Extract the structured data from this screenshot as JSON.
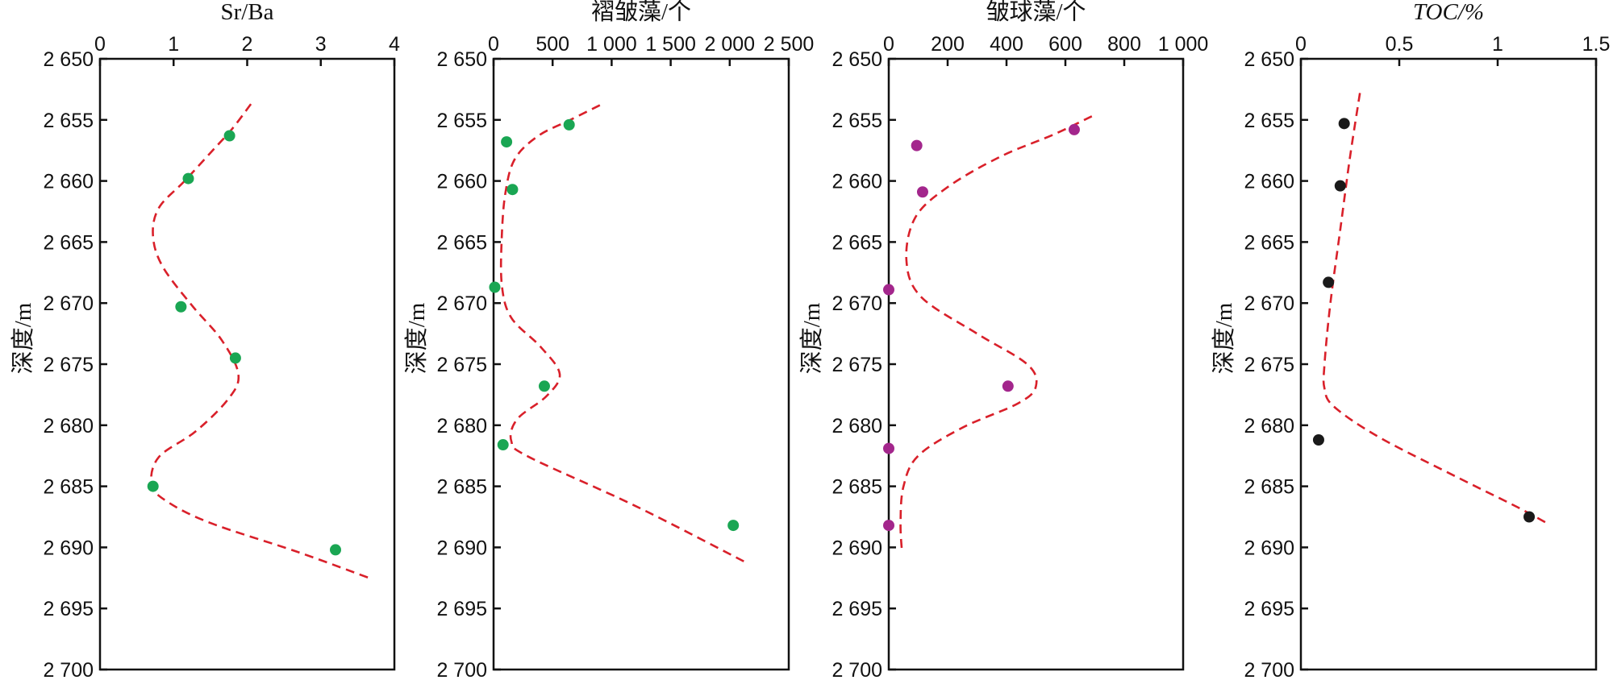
{
  "chart_data": [
    {
      "type": "scatter",
      "title": "Sr/Ba",
      "title_italic": false,
      "ylabel": "深度/m",
      "xlim": [
        0,
        4
      ],
      "xticks": [
        0,
        1,
        2,
        3,
        4
      ],
      "xtick_labels": [
        "0",
        "1",
        "2",
        "3",
        "4"
      ],
      "ylim": [
        2650,
        2700
      ],
      "yticks": [
        2650,
        2655,
        2660,
        2665,
        2670,
        2675,
        2680,
        2685,
        2690,
        2695,
        2700
      ],
      "ytick_labels": [
        "2 650",
        "2 655",
        "2 660",
        "2 665",
        "2 670",
        "2 675",
        "2 680",
        "2 685",
        "2 690",
        "2 695",
        "2 700"
      ],
      "marker_color": "#1aa653",
      "points": [
        {
          "x": 1.76,
          "y": 2656.3
        },
        {
          "x": 1.2,
          "y": 2659.8
        },
        {
          "x": 1.1,
          "y": 2670.3
        },
        {
          "x": 1.84,
          "y": 2674.5
        },
        {
          "x": 0.72,
          "y": 2685.0
        },
        {
          "x": 3.2,
          "y": 2690.2
        }
      ],
      "trend_color": "#d9202a",
      "trend_style": "dashed",
      "trend": [
        [
          2.05,
          2653.7
        ],
        [
          1.8,
          2655.7
        ],
        [
          1.5,
          2657.7
        ],
        [
          1.15,
          2660.0
        ],
        [
          0.8,
          2662.2
        ],
        [
          0.72,
          2664.5
        ],
        [
          0.85,
          2667.0
        ],
        [
          1.25,
          2670.2
        ],
        [
          1.65,
          2673.0
        ],
        [
          1.88,
          2675.8
        ],
        [
          1.75,
          2677.8
        ],
        [
          1.3,
          2680.5
        ],
        [
          0.8,
          2682.6
        ],
        [
          0.7,
          2684.8
        ],
        [
          0.9,
          2686.2
        ],
        [
          1.5,
          2688.0
        ],
        [
          2.7,
          2690.4
        ],
        [
          3.7,
          2692.6
        ]
      ]
    },
    {
      "type": "scatter",
      "title": "褶皱藻/个",
      "title_italic": false,
      "ylabel": "深度/m",
      "xlim": [
        0,
        2500
      ],
      "xticks": [
        0,
        500,
        1000,
        1500,
        2000,
        2500
      ],
      "xtick_labels": [
        "0",
        "500",
        "1 000",
        "1 500",
        "2 000",
        "2 500"
      ],
      "ylim": [
        2650,
        2700
      ],
      "yticks": [
        2650,
        2655,
        2660,
        2665,
        2670,
        2675,
        2680,
        2685,
        2690,
        2695,
        2700
      ],
      "ytick_labels": [
        "2 650",
        "2 655",
        "2 660",
        "2 665",
        "2 670",
        "2 675",
        "2 680",
        "2 685",
        "2 690",
        "2 695",
        "2 700"
      ],
      "marker_color": "#1aa653",
      "points": [
        {
          "x": 640,
          "y": 2655.4
        },
        {
          "x": 110,
          "y": 2656.8
        },
        {
          "x": 160,
          "y": 2660.7
        },
        {
          "x": 10,
          "y": 2668.7
        },
        {
          "x": 430,
          "y": 2676.8
        },
        {
          "x": 80,
          "y": 2681.6
        },
        {
          "x": 2030,
          "y": 2688.2
        }
      ],
      "trend_color": "#d9202a",
      "trend_style": "dashed",
      "trend": [
        [
          900,
          2653.8
        ],
        [
          650,
          2655.0
        ],
        [
          380,
          2656.3
        ],
        [
          180,
          2658.2
        ],
        [
          100,
          2661.0
        ],
        [
          70,
          2664.5
        ],
        [
          70,
          2668.5
        ],
        [
          150,
          2671.2
        ],
        [
          400,
          2673.6
        ],
        [
          560,
          2675.8
        ],
        [
          450,
          2677.6
        ],
        [
          200,
          2679.5
        ],
        [
          150,
          2681.3
        ],
        [
          300,
          2682.6
        ],
        [
          1200,
          2686.6
        ],
        [
          2150,
          2691.3
        ]
      ]
    },
    {
      "type": "scatter",
      "title": "皱球藻/个",
      "title_italic": false,
      "ylabel": "深度/m",
      "xlim": [
        0,
        1000
      ],
      "xticks": [
        0,
        200,
        400,
        600,
        800,
        1000
      ],
      "xtick_labels": [
        "0",
        "200",
        "400",
        "600",
        "800",
        "1 000"
      ],
      "ylim": [
        2650,
        2700
      ],
      "yticks": [
        2650,
        2655,
        2660,
        2665,
        2670,
        2675,
        2680,
        2685,
        2690,
        2695,
        2700
      ],
      "ytick_labels": [
        "2 650",
        "2 655",
        "2 660",
        "2 665",
        "2 670",
        "2 675",
        "2 680",
        "2 685",
        "2 690",
        "2 695",
        "2 700"
      ],
      "marker_color": "#a3268c",
      "points": [
        {
          "x": 630,
          "y": 2655.8
        },
        {
          "x": 95,
          "y": 2657.1
        },
        {
          "x": 115,
          "y": 2660.9
        },
        {
          "x": 0,
          "y": 2668.9
        },
        {
          "x": 405,
          "y": 2676.8
        },
        {
          "x": 0,
          "y": 2681.9
        },
        {
          "x": 0,
          "y": 2688.2
        }
      ],
      "trend_color": "#d9202a",
      "trend_style": "dashed",
      "trend": [
        [
          690,
          2654.7
        ],
        [
          560,
          2656.2
        ],
        [
          380,
          2658.0
        ],
        [
          200,
          2660.5
        ],
        [
          90,
          2663.0
        ],
        [
          60,
          2666.5
        ],
        [
          110,
          2669.5
        ],
        [
          300,
          2672.5
        ],
        [
          470,
          2675.0
        ],
        [
          500,
          2676.8
        ],
        [
          440,
          2678.2
        ],
        [
          250,
          2680.2
        ],
        [
          100,
          2682.5
        ],
        [
          50,
          2685.0
        ],
        [
          40,
          2688.0
        ],
        [
          45,
          2690.4
        ]
      ]
    },
    {
      "type": "scatter",
      "title": "TOC/%",
      "title_italic": true,
      "ylabel": "深度/m",
      "xlim": [
        0,
        1.5
      ],
      "xticks": [
        0,
        0.5,
        1,
        1.5
      ],
      "xtick_labels": [
        "0",
        "0.5",
        "1",
        "1.5"
      ],
      "ylim": [
        2650,
        2700
      ],
      "yticks": [
        2650,
        2655,
        2660,
        2665,
        2670,
        2675,
        2680,
        2685,
        2690,
        2695,
        2700
      ],
      "ytick_labels": [
        "2 650",
        "2 655",
        "2 660",
        "2 665",
        "2 670",
        "2 675",
        "2 680",
        "2 685",
        "2 690",
        "2 695",
        "2 700"
      ],
      "marker_color": "#1a1a1a",
      "points": [
        {
          "x": 0.22,
          "y": 2655.3
        },
        {
          "x": 0.2,
          "y": 2660.4
        },
        {
          "x": 0.14,
          "y": 2668.3
        },
        {
          "x": 0.09,
          "y": 2681.2
        },
        {
          "x": 1.16,
          "y": 2687.5
        }
      ],
      "trend_color": "#d9202a",
      "trend_style": "dashed",
      "trend": [
        [
          0.3,
          2652.8
        ],
        [
          0.25,
          2658.0
        ],
        [
          0.2,
          2664.0
        ],
        [
          0.15,
          2670.0
        ],
        [
          0.12,
          2675.0
        ],
        [
          0.12,
          2677.0
        ],
        [
          0.17,
          2678.5
        ],
        [
          0.4,
          2681.0
        ],
        [
          0.8,
          2684.3
        ],
        [
          1.1,
          2686.7
        ],
        [
          1.26,
          2688.1
        ]
      ]
    }
  ]
}
